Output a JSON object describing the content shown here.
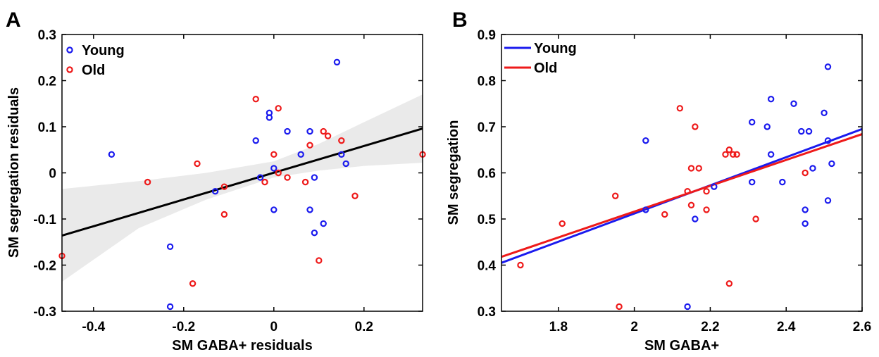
{
  "panels": [
    {
      "letter": "A"
    },
    {
      "letter": "B"
    }
  ],
  "chart_data": [
    {
      "type": "scatter",
      "xlabel": "SM GABA+ residuals",
      "ylabel": "SM segregation residuals",
      "xlim": [
        -0.47,
        0.33
      ],
      "ylim": [
        -0.3,
        0.3
      ],
      "xticks": [
        -0.4,
        -0.2,
        0,
        0.2
      ],
      "xtick_labels": [
        "-0.4",
        "-0.2",
        "0",
        "0.2"
      ],
      "yticks": [
        -0.3,
        -0.2,
        -0.1,
        0,
        0.1,
        0.2,
        0.3
      ],
      "ytick_labels": [
        "-0.3",
        "-0.2",
        "-0.1",
        "0",
        "0.1",
        "0.2",
        "0.3"
      ],
      "legend_position": "top-left",
      "grid": false,
      "series": [
        {
          "name": "Young",
          "color": "#1a1aee",
          "points": [
            [
              -0.36,
              0.04
            ],
            [
              -0.23,
              -0.16
            ],
            [
              -0.23,
              -0.29
            ],
            [
              -0.13,
              -0.04
            ],
            [
              -0.04,
              0.07
            ],
            [
              -0.03,
              -0.01
            ],
            [
              -0.01,
              0.13
            ],
            [
              -0.01,
              0.12
            ],
            [
              0.0,
              0.01
            ],
            [
              0.0,
              -0.08
            ],
            [
              0.03,
              0.09
            ],
            [
              0.06,
              0.04
            ],
            [
              0.08,
              0.09
            ],
            [
              0.08,
              -0.08
            ],
            [
              0.09,
              -0.01
            ],
            [
              0.09,
              -0.13
            ],
            [
              0.11,
              -0.11
            ],
            [
              0.14,
              0.24
            ],
            [
              0.15,
              0.04
            ],
            [
              0.16,
              0.02
            ]
          ]
        },
        {
          "name": "Old",
          "color": "#ee1a1a",
          "points": [
            [
              -0.47,
              -0.18
            ],
            [
              -0.28,
              -0.02
            ],
            [
              -0.18,
              -0.24
            ],
            [
              -0.17,
              0.02
            ],
            [
              -0.11,
              -0.03
            ],
            [
              -0.11,
              -0.09
            ],
            [
              -0.04,
              0.16
            ],
            [
              -0.02,
              -0.02
            ],
            [
              0.0,
              0.04
            ],
            [
              0.01,
              0.14
            ],
            [
              0.01,
              0.0
            ],
            [
              0.03,
              -0.01
            ],
            [
              0.07,
              -0.02
            ],
            [
              0.08,
              0.06
            ],
            [
              0.1,
              -0.19
            ],
            [
              0.11,
              0.09
            ],
            [
              0.12,
              0.08
            ],
            [
              0.15,
              0.07
            ],
            [
              0.18,
              -0.05
            ],
            [
              0.33,
              0.04
            ]
          ]
        }
      ],
      "fit_line": {
        "color": "#000000",
        "from": [
          -0.47,
          -0.136
        ],
        "to": [
          0.33,
          0.096
        ]
      },
      "confidence_band": {
        "color": "#e6e6e6",
        "x": [
          -0.47,
          -0.3,
          -0.15,
          0.0,
          0.1,
          0.2,
          0.33
        ],
        "lower": [
          -0.236,
          -0.12,
          -0.058,
          -0.01,
          0.005,
          0.015,
          0.022
        ],
        "upper": [
          -0.035,
          -0.018,
          0.0,
          0.025,
          0.063,
          0.11,
          0.17
        ]
      }
    },
    {
      "type": "scatter",
      "xlabel": "SM GABA+",
      "ylabel": "SM segregation",
      "xlim": [
        1.65,
        2.6
      ],
      "ylim": [
        0.3,
        0.9
      ],
      "xticks": [
        1.8,
        2.0,
        2.2,
        2.4,
        2.6
      ],
      "xtick_labels": [
        "1.8",
        "2",
        "2.2",
        "2.4",
        "2.6"
      ],
      "yticks": [
        0.3,
        0.4,
        0.5,
        0.6,
        0.7,
        0.8,
        0.9
      ],
      "ytick_labels": [
        "0.3",
        "0.4",
        "0.5",
        "0.6",
        "0.7",
        "0.8",
        "0.9"
      ],
      "legend_position": "top-left",
      "grid": false,
      "series": [
        {
          "name": "Young",
          "color": "#1a1aee",
          "points": [
            [
              2.03,
              0.67
            ],
            [
              2.03,
              0.52
            ],
            [
              2.14,
              0.31
            ],
            [
              2.16,
              0.5
            ],
            [
              2.21,
              0.57
            ],
            [
              2.31,
              0.71
            ],
            [
              2.31,
              0.58
            ],
            [
              2.35,
              0.7
            ],
            [
              2.36,
              0.76
            ],
            [
              2.36,
              0.64
            ],
            [
              2.39,
              0.58
            ],
            [
              2.42,
              0.75
            ],
            [
              2.44,
              0.69
            ],
            [
              2.45,
              0.52
            ],
            [
              2.45,
              0.49
            ],
            [
              2.46,
              0.69
            ],
            [
              2.47,
              0.61
            ],
            [
              2.5,
              0.73
            ],
            [
              2.51,
              0.83
            ],
            [
              2.51,
              0.67
            ],
            [
              2.51,
              0.54
            ],
            [
              2.52,
              0.62
            ]
          ]
        },
        {
          "name": "Old",
          "color": "#ee1a1a",
          "points": [
            [
              1.7,
              0.4
            ],
            [
              1.81,
              0.49
            ],
            [
              1.95,
              0.55
            ],
            [
              1.96,
              0.31
            ],
            [
              2.08,
              0.51
            ],
            [
              2.12,
              0.74
            ],
            [
              2.14,
              0.56
            ],
            [
              2.15,
              0.61
            ],
            [
              2.15,
              0.53
            ],
            [
              2.16,
              0.7
            ],
            [
              2.17,
              0.61
            ],
            [
              2.19,
              0.56
            ],
            [
              2.19,
              0.52
            ],
            [
              2.24,
              0.64
            ],
            [
              2.25,
              0.65
            ],
            [
              2.25,
              0.36
            ],
            [
              2.26,
              0.64
            ],
            [
              2.27,
              0.64
            ],
            [
              2.32,
              0.5
            ],
            [
              2.45,
              0.6
            ]
          ]
        }
      ],
      "fit_lines": [
        {
          "name": "Young",
          "color": "#1a1aee",
          "from": [
            1.65,
            0.405
          ],
          "to": [
            2.6,
            0.695
          ]
        },
        {
          "name": "Old",
          "color": "#ee1a1a",
          "from": [
            1.65,
            0.418
          ],
          "to": [
            2.6,
            0.684
          ]
        }
      ]
    }
  ]
}
